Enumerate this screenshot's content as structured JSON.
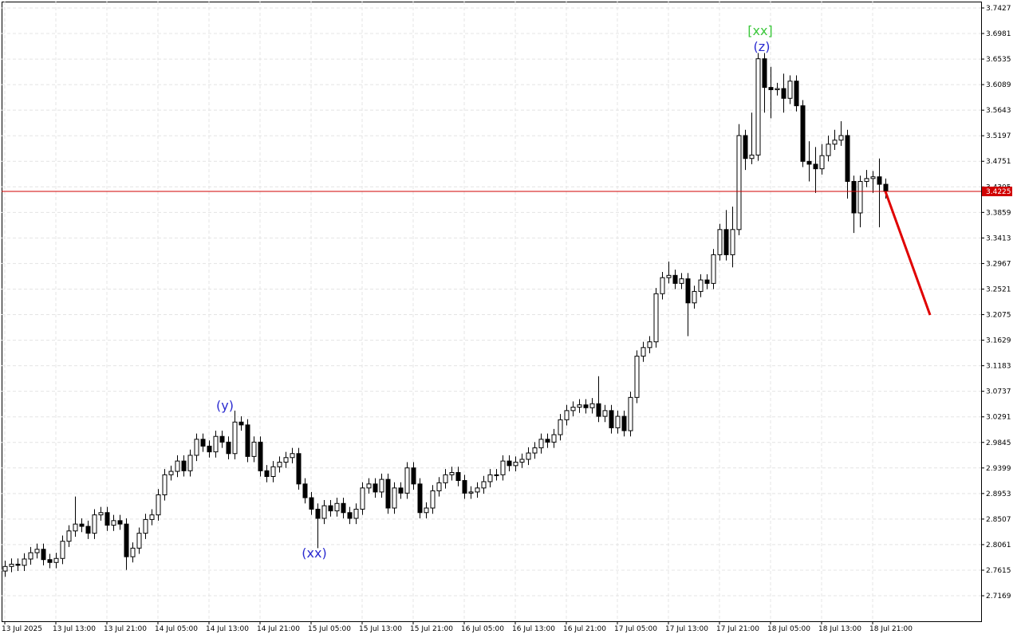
{
  "chart_data": {
    "type": "candlestick",
    "xlim": [
      -0.5,
      153
    ],
    "xticks": [
      {
        "value": 0,
        "label": "13 Jul 2025"
      },
      {
        "value": 8,
        "label": "13 Jul 13:00"
      },
      {
        "value": 16,
        "label": "13 Jul 21:00"
      },
      {
        "value": 24,
        "label": "14 Jul 05:00"
      },
      {
        "value": 32,
        "label": "14 Jul 13:00"
      },
      {
        "value": 40,
        "label": "14 Jul 21:00"
      },
      {
        "value": 48,
        "label": "15 Jul 05:00"
      },
      {
        "value": 56,
        "label": "15 Jul 13:00"
      },
      {
        "value": 64,
        "label": "15 Jul 21:00"
      },
      {
        "value": 72,
        "label": "16 Jul 05:00"
      },
      {
        "value": 80,
        "label": "16 Jul 13:00"
      },
      {
        "value": 88,
        "label": "16 Jul 21:00"
      },
      {
        "value": 96,
        "label": "17 Jul 05:00"
      },
      {
        "value": 104,
        "label": "17 Jul 13:00"
      },
      {
        "value": 112,
        "label": "17 Jul 21:00"
      },
      {
        "value": 120,
        "label": "18 Jul 05:00"
      },
      {
        "value": 128,
        "label": "18 Jul 13:00"
      },
      {
        "value": 136,
        "label": "18 Jul 21:00"
      }
    ],
    "ylim": [
      2.6724,
      3.7538
    ],
    "yticks": [
      2.7169,
      2.7615,
      2.8061,
      2.8507,
      2.8953,
      2.9399,
      2.9845,
      3.0291,
      3.0737,
      3.1183,
      3.1629,
      3.2075,
      3.2521,
      3.2967,
      3.3413,
      3.3859,
      3.4305,
      3.4751,
      3.5197,
      3.5643,
      3.6089,
      3.6535,
      3.6981,
      3.7427
    ],
    "grid": true,
    "open": [
      2.76,
      2.768,
      2.772,
      2.77,
      2.781,
      2.792,
      2.798,
      2.78,
      2.775,
      2.782,
      2.812,
      2.83,
      2.842,
      2.838,
      2.826,
      2.858,
      2.862,
      2.84,
      2.848,
      2.842,
      2.785,
      2.8,
      2.826,
      2.85,
      2.858,
      2.893,
      2.928,
      2.934,
      2.952,
      2.935,
      2.962,
      2.99,
      2.978,
      2.968,
      2.995,
      2.985,
      2.965,
      3.02,
      3.015,
      2.96,
      2.985,
      2.935,
      2.925,
      2.942,
      2.95,
      2.958,
      2.965,
      2.912,
      2.888,
      2.868,
      2.852,
      2.874,
      2.865,
      2.878,
      2.862,
      2.852,
      2.868,
      2.905,
      2.912,
      2.898,
      2.92,
      2.87,
      2.905,
      2.896,
      2.94,
      2.912,
      2.862,
      2.87,
      2.9,
      2.914,
      2.928,
      2.932,
      2.918,
      2.896,
      2.898,
      2.905,
      2.916,
      2.928,
      2.928,
      2.952,
      2.944,
      2.95,
      2.955,
      2.966,
      2.975,
      2.99,
      2.985,
      2.998,
      3.024,
      3.04,
      3.046,
      3.05,
      3.045,
      3.052,
      3.03,
      3.04,
      3.01,
      3.03,
      3.005,
      3.063,
      3.135,
      3.15,
      3.16,
      3.244,
      3.272,
      3.276,
      3.262,
      3.27,
      3.228,
      3.248,
      3.268,
      3.262,
      3.312,
      3.356,
      3.312,
      3.356,
      3.52,
      3.48,
      3.486,
      3.654,
      3.604,
      3.6,
      3.602,
      3.585,
      3.615,
      3.572,
      3.475,
      3.47,
      3.462,
      3.485,
      3.505,
      3.512,
      3.52,
      3.44,
      3.385,
      3.44,
      3.445,
      3.448,
      3.435
    ],
    "high": [
      2.778,
      2.782,
      2.782,
      2.791,
      2.802,
      2.808,
      2.808,
      2.79,
      2.792,
      2.822,
      2.84,
      2.89,
      2.852,
      2.848,
      2.868,
      2.872,
      2.872,
      2.858,
      2.858,
      2.852,
      2.81,
      2.836,
      2.86,
      2.868,
      2.903,
      2.938,
      2.944,
      2.962,
      2.962,
      2.972,
      3.0,
      3.0,
      2.988,
      3.005,
      3.005,
      2.995,
      3.04,
      3.03,
      3.025,
      2.995,
      2.995,
      2.945,
      2.952,
      2.96,
      2.968,
      2.975,
      2.975,
      2.922,
      2.898,
      2.878,
      2.884,
      2.884,
      2.888,
      2.888,
      2.872,
      2.878,
      2.915,
      2.922,
      2.922,
      2.93,
      2.93,
      2.915,
      2.915,
      2.95,
      2.95,
      2.922,
      2.88,
      2.91,
      2.924,
      2.938,
      2.942,
      2.942,
      2.928,
      2.908,
      2.915,
      2.926,
      2.938,
      2.938,
      2.962,
      2.962,
      2.96,
      2.965,
      2.976,
      2.985,
      3.0,
      3.0,
      3.008,
      3.034,
      3.05,
      3.056,
      3.06,
      3.06,
      3.062,
      3.1,
      3.05,
      3.05,
      3.04,
      3.04,
      3.073,
      3.145,
      3.16,
      3.17,
      3.254,
      3.282,
      3.3,
      3.286,
      3.28,
      3.28,
      3.258,
      3.278,
      3.278,
      3.322,
      3.366,
      3.39,
      3.396,
      3.54,
      3.53,
      3.56,
      3.664,
      3.664,
      3.64,
      3.612,
      3.628,
      3.625,
      3.625,
      3.582,
      3.51,
      3.5,
      3.505,
      3.52,
      3.53,
      3.545,
      3.53,
      3.45,
      3.45,
      3.46,
      3.458,
      3.48,
      3.445
    ],
    "low": [
      2.75,
      2.758,
      2.76,
      2.76,
      2.771,
      2.782,
      2.77,
      2.765,
      2.765,
      2.772,
      2.802,
      2.82,
      2.828,
      2.816,
      2.816,
      2.848,
      2.83,
      2.83,
      2.832,
      2.762,
      2.775,
      2.79,
      2.816,
      2.84,
      2.848,
      2.883,
      2.918,
      2.924,
      2.925,
      2.925,
      2.952,
      2.968,
      2.958,
      2.958,
      2.975,
      2.955,
      2.955,
      3.005,
      2.95,
      2.95,
      2.925,
      2.915,
      2.915,
      2.932,
      2.94,
      2.948,
      2.902,
      2.878,
      2.858,
      2.8,
      2.842,
      2.855,
      2.855,
      2.852,
      2.842,
      2.842,
      2.858,
      2.895,
      2.888,
      2.888,
      2.86,
      2.86,
      2.886,
      2.886,
      2.902,
      2.852,
      2.852,
      2.86,
      2.89,
      2.904,
      2.918,
      2.908,
      2.886,
      2.886,
      2.888,
      2.895,
      2.906,
      2.918,
      2.918,
      2.934,
      2.934,
      2.94,
      2.945,
      2.956,
      2.965,
      2.975,
      2.975,
      2.988,
      3.014,
      3.03,
      3.036,
      3.035,
      3.035,
      3.02,
      3.02,
      3.0,
      3.0,
      2.995,
      2.995,
      3.053,
      3.125,
      3.14,
      3.15,
      3.234,
      3.262,
      3.252,
      3.252,
      3.17,
      3.218,
      3.238,
      3.252,
      3.252,
      3.302,
      3.302,
      3.29,
      3.346,
      3.46,
      3.47,
      3.476,
      3.56,
      3.55,
      3.59,
      3.56,
      3.575,
      3.562,
      3.465,
      3.44,
      3.42,
      3.452,
      3.475,
      3.495,
      3.502,
      3.41,
      3.35,
      3.36,
      3.43,
      3.42,
      3.36,
      3.41
    ],
    "close": [
      2.768,
      2.772,
      2.77,
      2.781,
      2.792,
      2.798,
      2.78,
      2.775,
      2.782,
      2.812,
      2.83,
      2.842,
      2.838,
      2.826,
      2.858,
      2.862,
      2.84,
      2.848,
      2.842,
      2.785,
      2.8,
      2.826,
      2.85,
      2.858,
      2.893,
      2.928,
      2.934,
      2.952,
      2.935,
      2.962,
      2.99,
      2.978,
      2.968,
      2.995,
      2.985,
      2.965,
      3.02,
      3.015,
      2.96,
      2.985,
      2.935,
      2.925,
      2.942,
      2.95,
      2.958,
      2.965,
      2.912,
      2.888,
      2.868,
      2.852,
      2.874,
      2.865,
      2.878,
      2.862,
      2.852,
      2.868,
      2.905,
      2.912,
      2.898,
      2.92,
      2.87,
      2.905,
      2.896,
      2.94,
      2.912,
      2.862,
      2.87,
      2.9,
      2.914,
      2.928,
      2.932,
      2.918,
      2.896,
      2.898,
      2.905,
      2.916,
      2.928,
      2.928,
      2.952,
      2.944,
      2.95,
      2.955,
      2.966,
      2.975,
      2.99,
      2.985,
      2.998,
      3.024,
      3.04,
      3.046,
      3.05,
      3.045,
      3.052,
      3.03,
      3.04,
      3.01,
      3.03,
      3.005,
      3.063,
      3.135,
      3.15,
      3.16,
      3.244,
      3.272,
      3.276,
      3.262,
      3.27,
      3.228,
      3.248,
      3.268,
      3.262,
      3.312,
      3.356,
      3.312,
      3.356,
      3.52,
      3.48,
      3.486,
      3.654,
      3.604,
      3.6,
      3.602,
      3.585,
      3.615,
      3.572,
      3.475,
      3.47,
      3.462,
      3.485,
      3.505,
      3.512,
      3.52,
      3.44,
      3.385,
      3.44,
      3.445,
      3.448,
      3.435,
      3.4225
    ],
    "current_price": {
      "value": 3.4225,
      "color": "#d00000"
    },
    "forecast": {
      "x": [
        138,
        145
      ],
      "values": [
        3.4225,
        3.2069
      ],
      "color": "#e00000"
    },
    "annotations": [
      {
        "text": "[xx]",
        "color": "#3cc83c"
      },
      {
        "text": "(z)",
        "color": "#2a2ad0"
      },
      {
        "text": "(y)",
        "color": "#2a2ad0"
      },
      {
        "text": "(xx)",
        "color": "#2a2ad0"
      }
    ]
  }
}
